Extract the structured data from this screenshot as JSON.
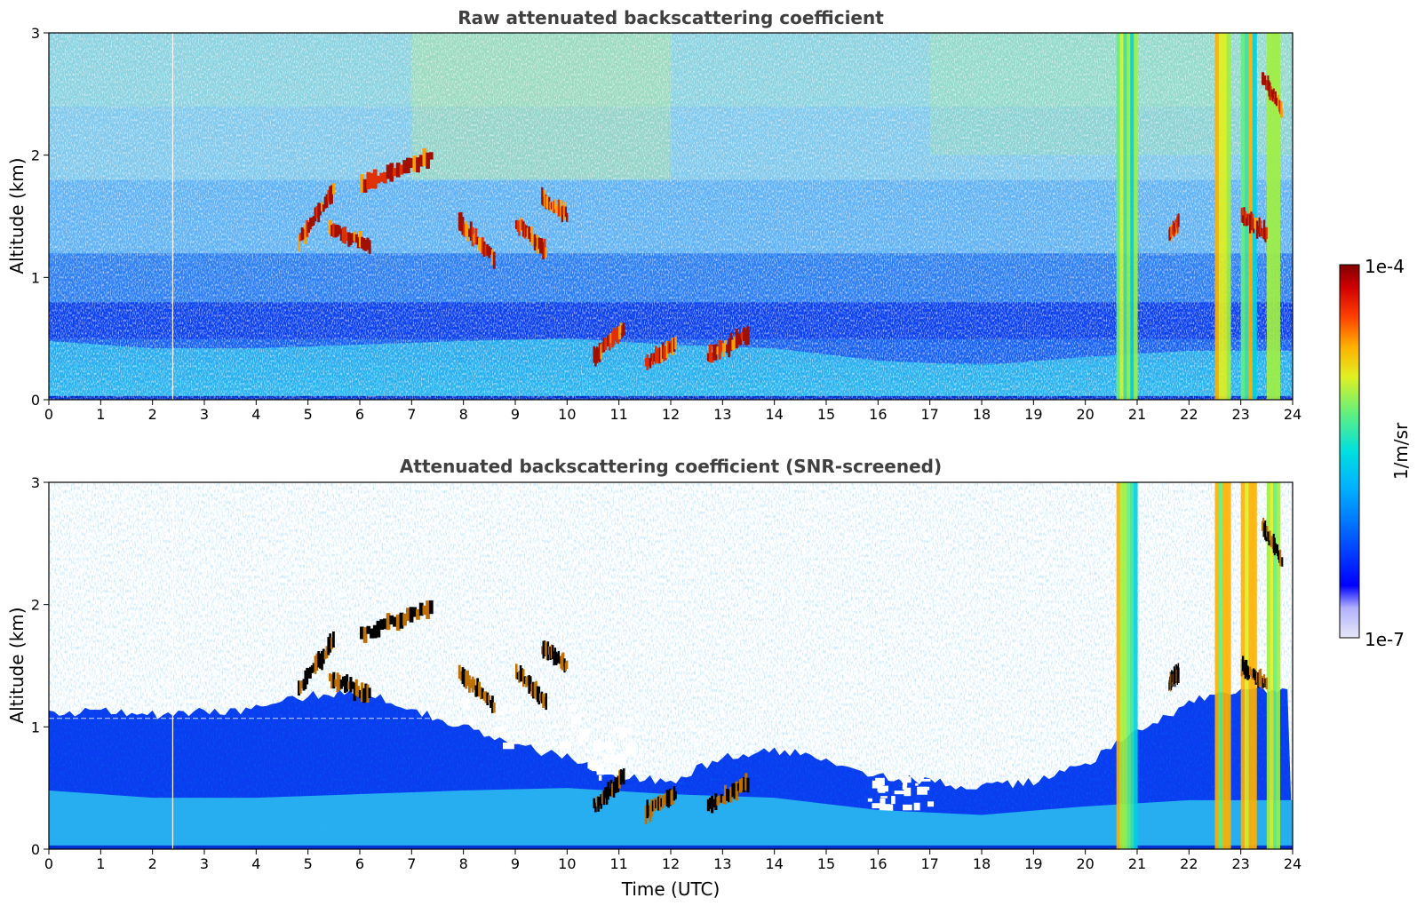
{
  "chart_data": [
    {
      "type": "heatmap",
      "title": "Raw attenuated backscattering coefficient",
      "xlabel": "",
      "ylabel": "Altitude (km)",
      "xlim": [
        0,
        24
      ],
      "ylim": [
        0,
        3
      ],
      "x_ticks": [
        "0",
        "1",
        "2",
        "3",
        "4",
        "5",
        "6",
        "7",
        "8",
        "9",
        "10",
        "11",
        "12",
        "13",
        "14",
        "15",
        "16",
        "17",
        "18",
        "19",
        "20",
        "21",
        "22",
        "23",
        "24"
      ],
      "y_ticks": [
        "0",
        "1",
        "2",
        "3"
      ],
      "boundary_layer_top_km": [
        [
          0,
          0.48
        ],
        [
          2,
          0.42
        ],
        [
          4,
          0.42
        ],
        [
          6,
          0.45
        ],
        [
          8,
          0.48
        ],
        [
          10,
          0.5
        ],
        [
          12,
          0.45
        ],
        [
          14,
          0.42
        ],
        [
          16,
          0.32
        ],
        [
          18,
          0.28
        ],
        [
          20,
          0.35
        ],
        [
          22,
          0.4
        ],
        [
          24,
          0.4
        ]
      ],
      "cloud_layers": [
        {
          "time_start": 4.8,
          "time_end": 5.5,
          "alt_start_km": 1.3,
          "alt_end_km": 1.72
        },
        {
          "time_start": 5.4,
          "time_end": 6.2,
          "alt_start_km": 1.4,
          "alt_end_km": 1.25
        },
        {
          "time_start": 6.0,
          "time_end": 7.4,
          "alt_start_km": 1.75,
          "alt_end_km": 2.0
        },
        {
          "time_start": 7.9,
          "time_end": 8.6,
          "alt_start_km": 1.45,
          "alt_end_km": 1.15
        },
        {
          "time_start": 9.0,
          "time_end": 9.6,
          "alt_start_km": 1.45,
          "alt_end_km": 1.2
        },
        {
          "time_start": 9.5,
          "time_end": 10.0,
          "alt_start_km": 1.65,
          "alt_end_km": 1.5
        },
        {
          "time_start": 10.5,
          "time_end": 11.1,
          "alt_start_km": 0.35,
          "alt_end_km": 0.6
        },
        {
          "time_start": 11.5,
          "time_end": 12.1,
          "alt_start_km": 0.3,
          "alt_end_km": 0.45
        },
        {
          "time_start": 12.7,
          "time_end": 13.5,
          "alt_start_km": 0.35,
          "alt_end_km": 0.55
        },
        {
          "time_start": 21.6,
          "time_end": 21.8,
          "alt_start_km": 1.35,
          "alt_end_km": 1.45
        },
        {
          "time_start": 23.0,
          "time_end": 23.5,
          "alt_start_km": 1.5,
          "alt_end_km": 1.35
        },
        {
          "time_start": 23.4,
          "time_end": 23.8,
          "alt_start_km": 2.65,
          "alt_end_km": 2.35
        }
      ],
      "precipitation_columns": [
        {
          "time_start": 20.6,
          "time_end": 21.0
        },
        {
          "time_start": 22.5,
          "time_end": 22.8
        },
        {
          "time_start": 23.0,
          "time_end": 23.3
        },
        {
          "time_start": 23.5,
          "time_end": 23.75
        }
      ]
    },
    {
      "type": "heatmap",
      "title": "Attenuated backscattering coefficient (SNR-screened)",
      "xlabel": "Time (UTC)",
      "ylabel": "Altitude (km)",
      "xlim": [
        0,
        24
      ],
      "ylim": [
        0,
        3
      ],
      "x_ticks": [
        "0",
        "1",
        "2",
        "3",
        "4",
        "5",
        "6",
        "7",
        "8",
        "9",
        "10",
        "11",
        "12",
        "13",
        "14",
        "15",
        "16",
        "17",
        "18",
        "19",
        "20",
        "21",
        "22",
        "23",
        "24"
      ],
      "y_ticks": [
        "0",
        "1",
        "2",
        "3"
      ],
      "screened_signal_top_km": [
        [
          0,
          1.1
        ],
        [
          1,
          1.15
        ],
        [
          2,
          1.1
        ],
        [
          3,
          1.12
        ],
        [
          4,
          1.15
        ],
        [
          5,
          1.25
        ],
        [
          6,
          1.3
        ],
        [
          7,
          1.15
        ],
        [
          8,
          1.0
        ],
        [
          9,
          0.85
        ],
        [
          10,
          0.75
        ],
        [
          11,
          0.6
        ],
        [
          12,
          0.55
        ],
        [
          13,
          0.75
        ],
        [
          14,
          0.8
        ],
        [
          15,
          0.75
        ],
        [
          16,
          0.6
        ],
        [
          17,
          0.55
        ],
        [
          18,
          0.5
        ],
        [
          19,
          0.55
        ],
        [
          20,
          0.7
        ],
        [
          21,
          0.95
        ],
        [
          22,
          1.2
        ],
        [
          23,
          1.3
        ],
        [
          24,
          1.3
        ]
      ]
    }
  ],
  "colorbar": {
    "label": "1/m/sr",
    "max_label": "1e-4",
    "min_label": "1e-7",
    "scale": "log",
    "colormap": "jet",
    "colors": [
      "#e8e8f8",
      "#0000ff",
      "#00a0ff",
      "#00e0e0",
      "#60f080",
      "#f0f000",
      "#ff8000",
      "#ff0000",
      "#800000"
    ]
  }
}
